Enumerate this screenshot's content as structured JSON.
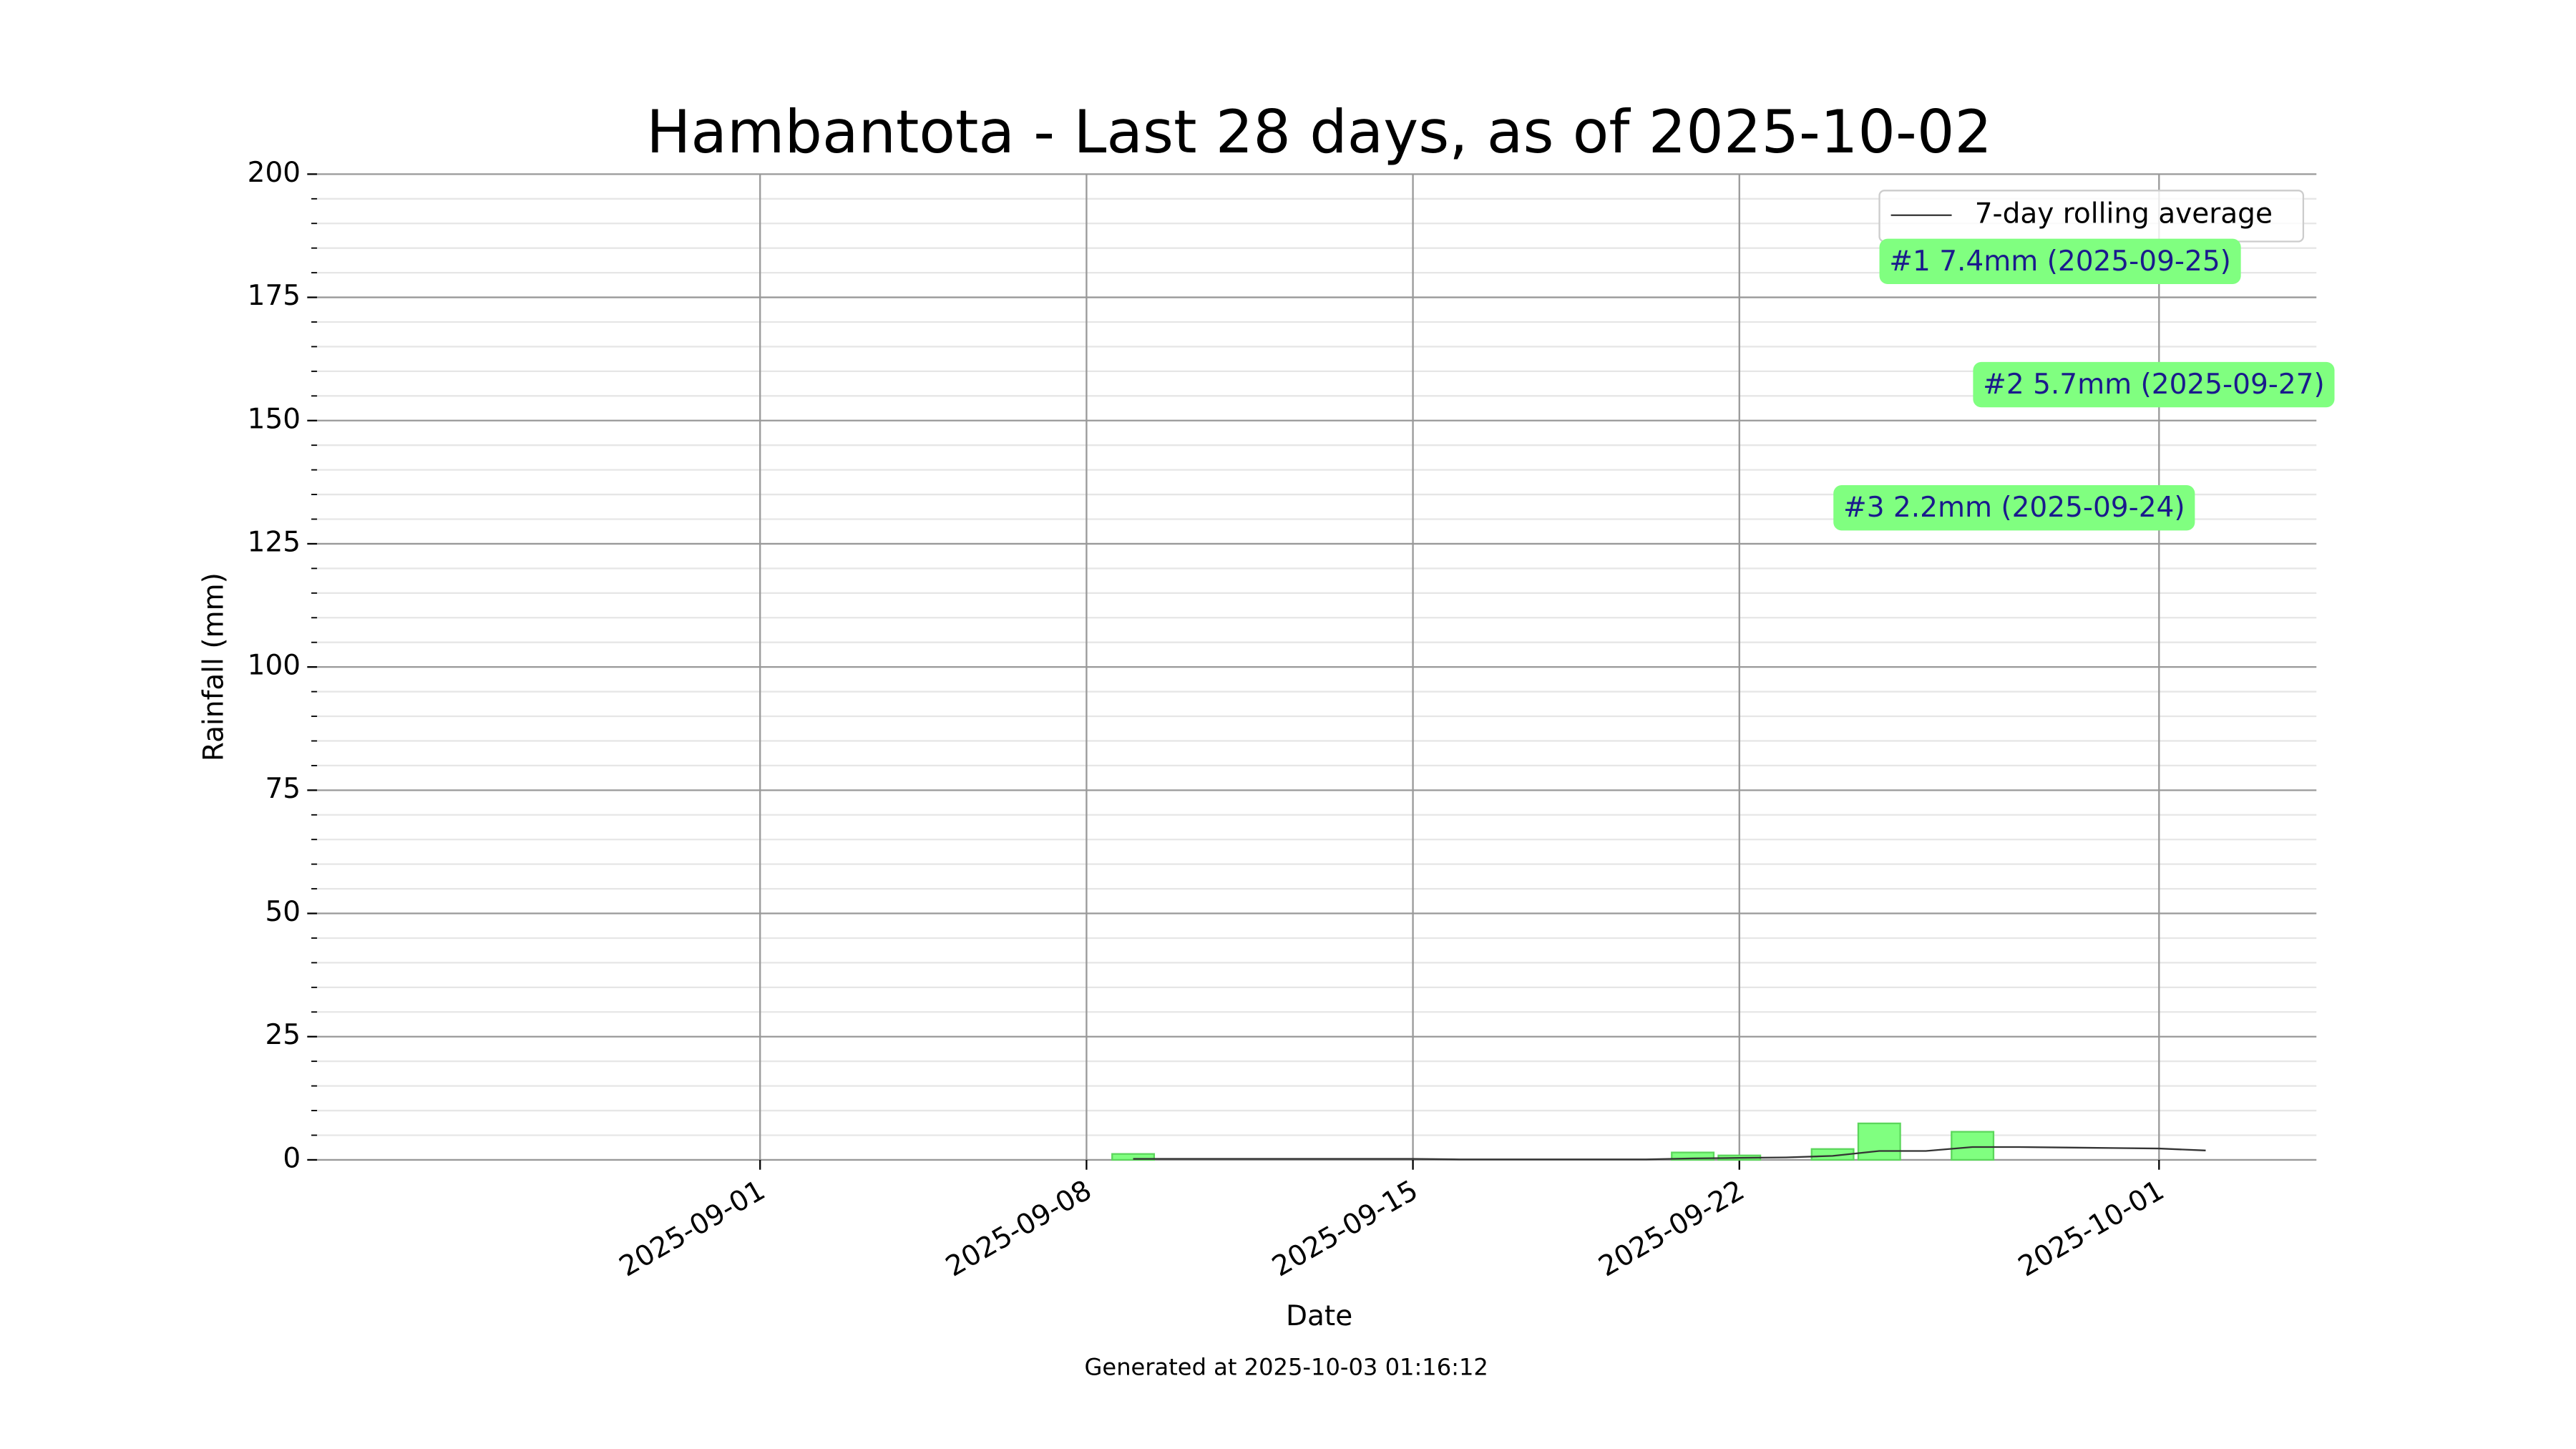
{
  "chart_data": {
    "type": "bar",
    "title": "Hambantota - Last 28 days, as of 2025-10-02",
    "x_label": "Date",
    "y_label": "Rainfall (mm)",
    "footer": "Generated at 2025-10-03 01:16:12",
    "xlim": [
      "2025-08-22T12:00",
      "2025-10-04T09:00"
    ],
    "xticks": [
      "2025-09-01",
      "2025-09-08",
      "2025-09-15",
      "2025-09-22",
      "2025-10-01"
    ],
    "ylim": [
      0,
      200
    ],
    "yticks": [
      0,
      25,
      50,
      75,
      100,
      125,
      150,
      175,
      200
    ],
    "yminorticks": [
      5,
      10,
      15,
      20,
      30,
      35,
      40,
      45,
      55,
      60,
      65,
      70,
      80,
      85,
      90,
      95,
      105,
      110,
      115,
      120,
      130,
      135,
      140,
      145,
      155,
      160,
      165,
      170,
      180,
      185,
      190,
      195
    ],
    "grid": true,
    "legend": "upper right",
    "bars": {
      "color": "#80ff80",
      "x": [
        "2025-08-25",
        "2025-08-26",
        "2025-08-27",
        "2025-08-28",
        "2025-09-06",
        "2025-09-07",
        "2025-09-08",
        "2025-09-09",
        "2025-09-19",
        "2025-09-20",
        "2025-09-21",
        "2025-09-22",
        "2025-09-24",
        "2025-09-25",
        "2025-09-26",
        "2025-09-27",
        "2025-09-28",
        "2025-09-30",
        "2025-10-01",
        "2025-10-02"
      ],
      "values": [
        0,
        0,
        0,
        0,
        0,
        0,
        0,
        1.2,
        0,
        0,
        1.5,
        0.9,
        2.2,
        7.4,
        0,
        5.7,
        0,
        0,
        0,
        0
      ]
    },
    "series": [
      {
        "name": "7-day rolling average",
        "color": "#333333",
        "x": [
          "2025-09-09",
          "2025-09-10",
          "2025-09-11",
          "2025-09-12",
          "2025-09-13",
          "2025-09-14",
          "2025-09-15",
          "2025-09-16",
          "2025-09-17",
          "2025-09-18",
          "2025-09-19",
          "2025-09-20",
          "2025-09-21",
          "2025-09-22",
          "2025-09-23",
          "2025-09-24",
          "2025-09-25",
          "2025-09-26",
          "2025-09-27",
          "2025-09-28",
          "2025-09-29",
          "2025-09-30",
          "2025-10-01",
          "2025-10-02"
        ],
        "values": [
          0.2,
          0.2,
          0.2,
          0.2,
          0.2,
          0.2,
          0.2,
          0.1,
          0.1,
          0.1,
          0.1,
          0.1,
          0.3,
          0.4,
          0.5,
          0.8,
          1.8,
          1.8,
          2.6,
          2.6,
          2.5,
          2.4,
          2.3,
          1.9
        ]
      }
    ],
    "annotations": [
      "#1 7.4mm (2025-09-25)",
      "#2 5.7mm (2025-09-27)",
      "#3 2.2mm (2025-09-24)"
    ]
  }
}
